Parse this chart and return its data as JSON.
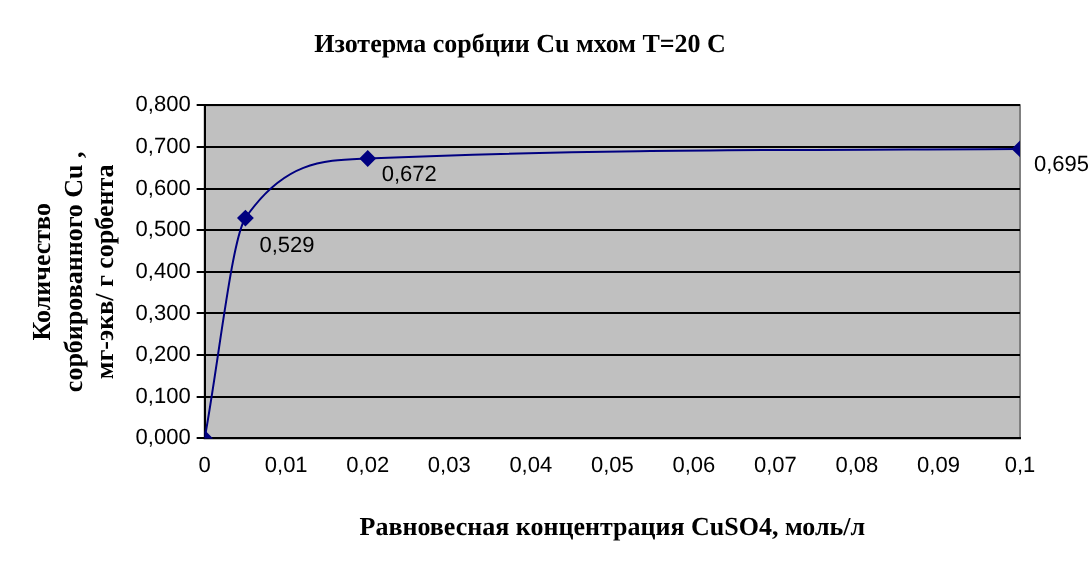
{
  "chart_data": {
    "type": "line",
    "title": "Изотерма сорбции Cu мхом T=20 C",
    "xlabel": "Равновесная концентрация CuSO4, моль/л",
    "ylabel": "Количество\nсорбированного Cu ,\nмг-экв/ г сорбента",
    "x": [
      0,
      0.005,
      0.02,
      0.1
    ],
    "series": [
      {
        "color": "#000080",
        "values": [
          0,
          0.529,
          0.672,
          0.695
        ],
        "value_labels": [
          null,
          "0,529",
          "0,672",
          "0,695"
        ]
      }
    ],
    "xlim": [
      0,
      0.1
    ],
    "xticks": [
      {
        "value": 0,
        "label": "0"
      },
      {
        "value": 0.01,
        "label": "0,01"
      },
      {
        "value": 0.02,
        "label": "0,02"
      },
      {
        "value": 0.03,
        "label": "0,03"
      },
      {
        "value": 0.04,
        "label": "0,04"
      },
      {
        "value": 0.05,
        "label": "0,05"
      },
      {
        "value": 0.06,
        "label": "0,06"
      },
      {
        "value": 0.07,
        "label": "0,07"
      },
      {
        "value": 0.08,
        "label": "0,08"
      },
      {
        "value": 0.09,
        "label": "0,09"
      },
      {
        "value": 0.1,
        "label": "0,1"
      }
    ],
    "ylim": [
      0,
      0.8
    ],
    "yticks": [
      {
        "value": 0,
        "label": "0,000"
      },
      {
        "value": 0.1,
        "label": "0,100"
      },
      {
        "value": 0.2,
        "label": "0,200"
      },
      {
        "value": 0.3,
        "label": "0,300"
      },
      {
        "value": 0.4,
        "label": "0,400"
      },
      {
        "value": 0.5,
        "label": "0,500"
      },
      {
        "value": 0.6,
        "label": "0,600"
      },
      {
        "value": 0.7,
        "label": "0,700"
      },
      {
        "value": 0.8,
        "label": "0,800"
      }
    ],
    "grid": "y",
    "legend": false,
    "marker": "diamond",
    "line_style": "solid"
  }
}
